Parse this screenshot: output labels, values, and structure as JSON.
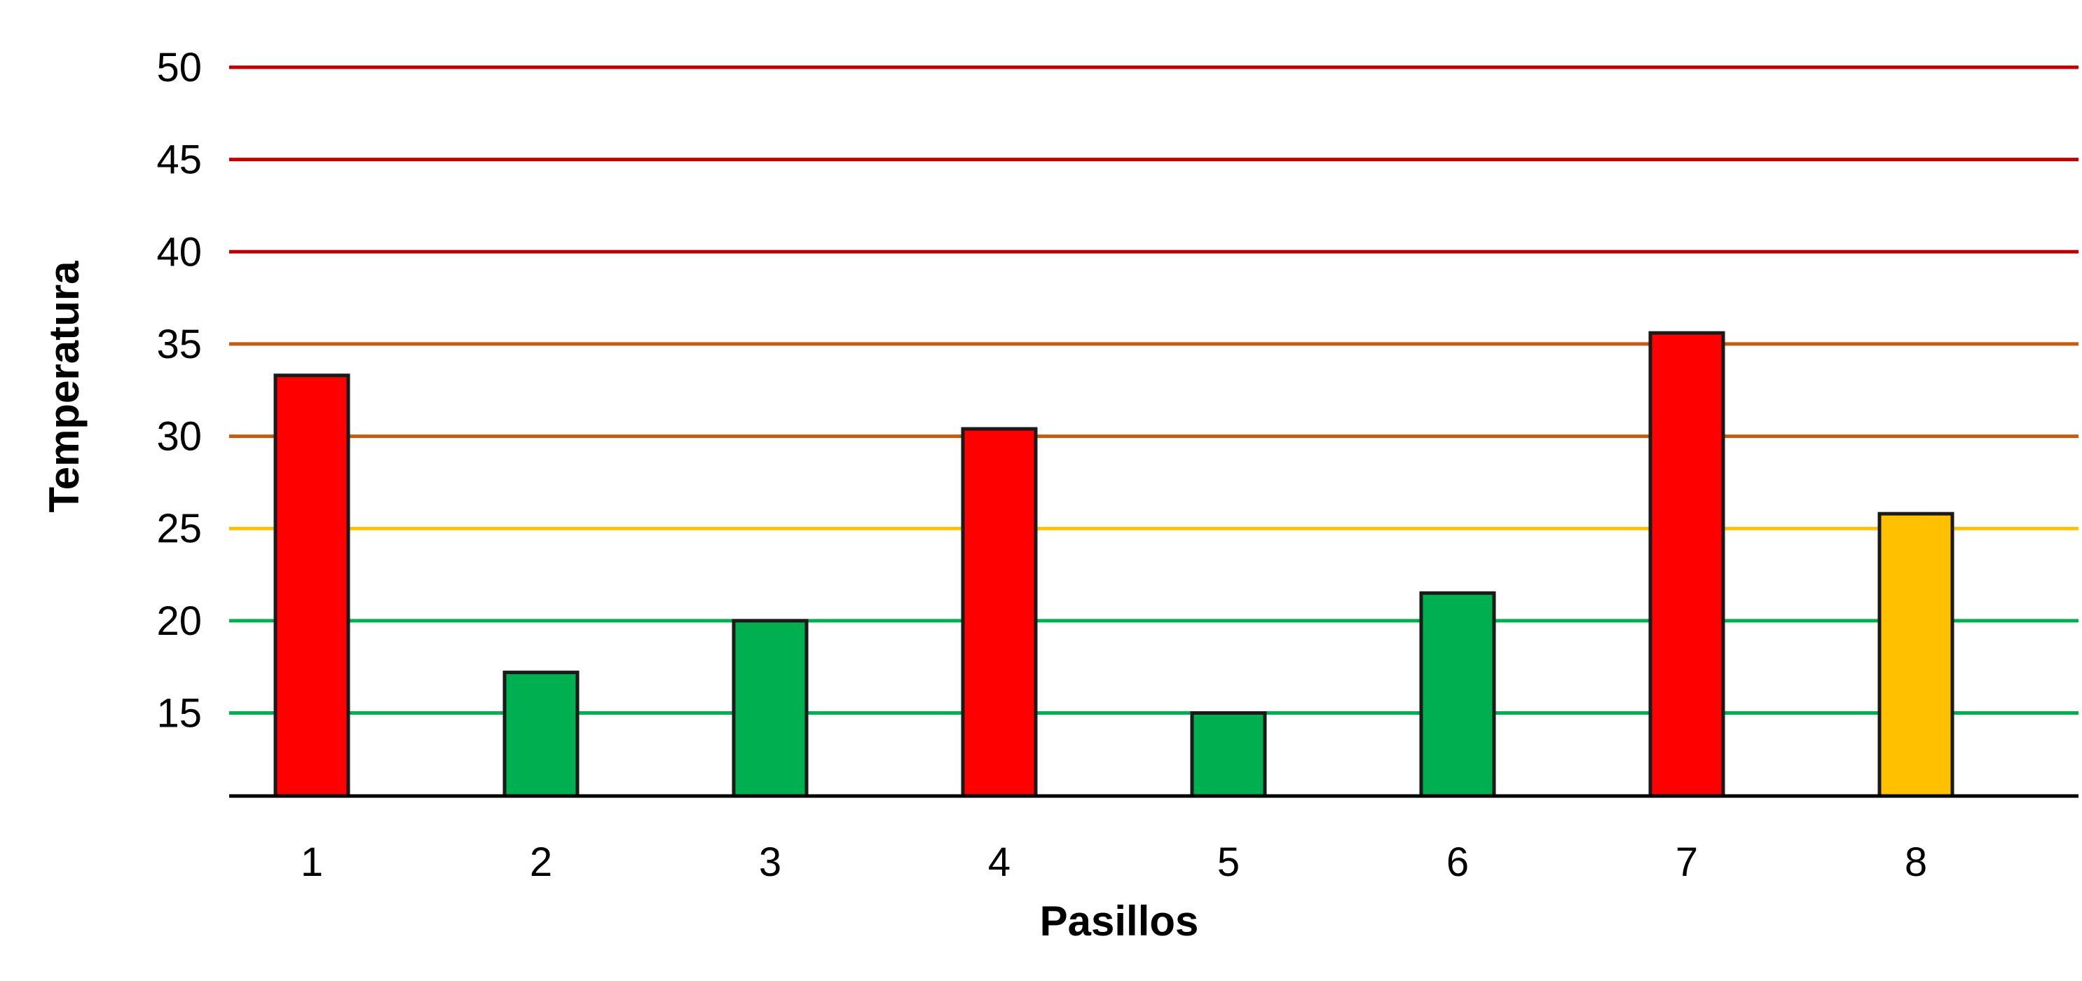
{
  "chart_data": {
    "type": "bar",
    "title": "",
    "xlabel": "Pasillos",
    "ylabel": "Temperatura",
    "categories": [
      "1",
      "2",
      "3",
      "4",
      "5",
      "6",
      "7",
      "8"
    ],
    "values": [
      33.3,
      17.2,
      20.0,
      30.4,
      15.0,
      21.5,
      35.6,
      25.8
    ],
    "bar_colors": [
      "#ff0000",
      "#00b050",
      "#00b050",
      "#ff0000",
      "#00b050",
      "#00b050",
      "#ff0000",
      "#ffc000"
    ],
    "ylim": [
      10.5,
      50
    ],
    "yticks": [
      15,
      20,
      25,
      30,
      35,
      40,
      45,
      50
    ],
    "gridline_colors": [
      "#00b050",
      "#00b050",
      "#ffc000",
      "#c55a11",
      "#c55a11",
      "#c00000",
      "#c00000",
      "#c00000"
    ],
    "grid": true,
    "legend": "none"
  }
}
